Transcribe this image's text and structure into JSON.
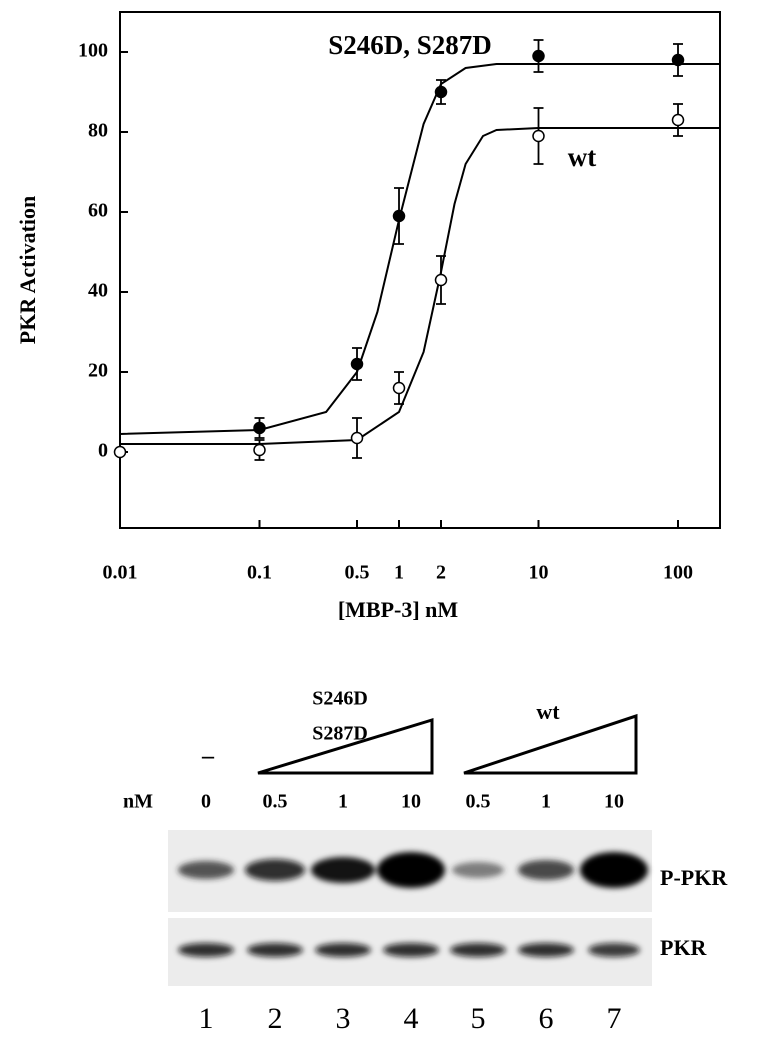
{
  "chart_data": {
    "type": "scatter",
    "xlabel": "[MBP-3] nM",
    "ylabel": "PKR Activation",
    "xscale": "log",
    "xlim": [
      0.01,
      200
    ],
    "ylim": [
      -19,
      110
    ],
    "xticks": [
      0.01,
      0.1,
      0.5,
      1,
      2,
      10,
      100
    ],
    "yticks": [
      0,
      20,
      40,
      60,
      80,
      100
    ],
    "annotations": [
      "S246D, S287D",
      "wt"
    ],
    "series": [
      {
        "name": "S246D, S287D",
        "color": "#000000",
        "fill": "#000000",
        "x": [
          0.1,
          0.5,
          1,
          2,
          10,
          100
        ],
        "values": [
          6,
          22,
          59,
          90,
          99,
          98
        ],
        "errors": [
          2.5,
          4,
          7,
          3,
          4,
          4
        ],
        "curve": {
          "x": [
            0.01,
            0.1,
            0.3,
            0.5,
            0.7,
            1,
            1.5,
            2,
            3,
            5,
            10,
            100,
            200
          ],
          "y": [
            4.5,
            5.5,
            10,
            20,
            35,
            58,
            82,
            92,
            96,
            97,
            97,
            97,
            97
          ]
        }
      },
      {
        "name": "wt",
        "color": "#000000",
        "fill": "#ffffff",
        "x": [
          0.01,
          0.1,
          0.5,
          1,
          2,
          10,
          100
        ],
        "values": [
          0,
          0.5,
          3.5,
          16,
          43,
          79,
          83
        ],
        "errors": [
          null,
          2.5,
          5,
          4,
          6,
          7,
          4
        ],
        "curve": {
          "x": [
            0.01,
            0.1,
            0.5,
            1,
            1.5,
            2,
            2.5,
            3,
            4,
            5,
            10,
            100,
            200
          ],
          "y": [
            2,
            2,
            3,
            10,
            25,
            45,
            62,
            72,
            79,
            80.5,
            81,
            81,
            81
          ]
        }
      }
    ]
  },
  "blot": {
    "mutant_label": [
      "S246D",
      "S287D"
    ],
    "wt_label": "wt",
    "no_protein": "–",
    "unit": "nM",
    "concentrations": [
      0,
      0.5,
      1,
      10,
      0.5,
      1,
      10
    ],
    "rows": [
      "P-PKR",
      "PKR"
    ],
    "lanes": [
      1,
      2,
      3,
      4,
      5,
      6,
      7
    ]
  }
}
